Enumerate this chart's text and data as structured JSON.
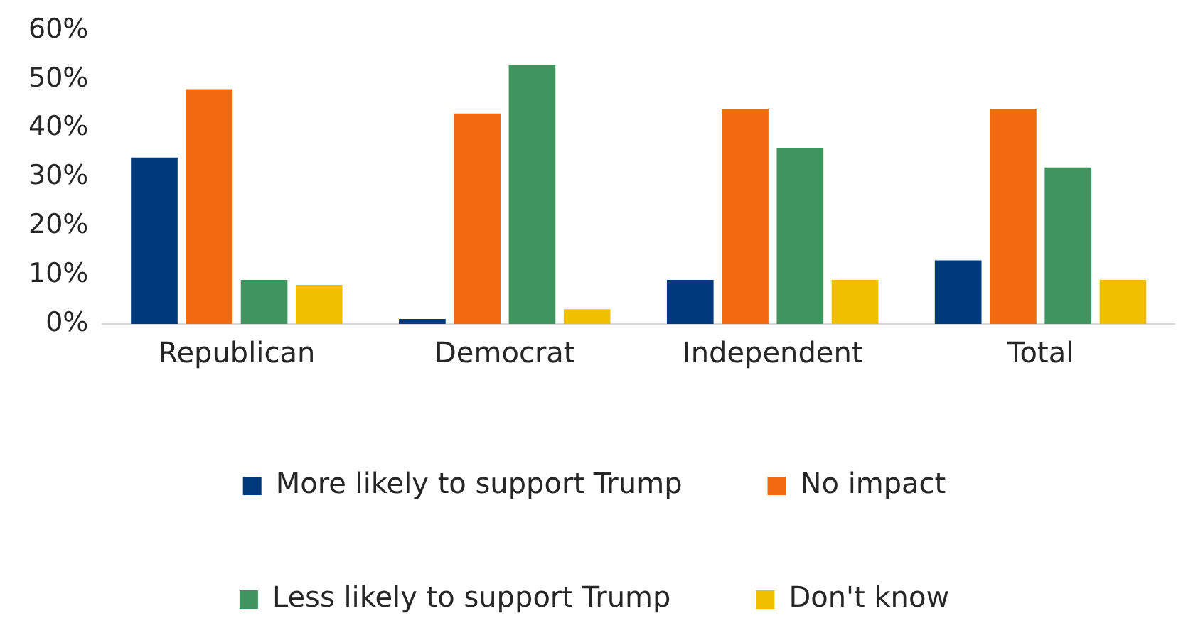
{
  "chart_data": {
    "type": "bar",
    "categories": [
      "Republican",
      "Democrat",
      "Independent",
      "Total"
    ],
    "series": [
      {
        "name": "More likely to support Trump",
        "color": "#003a7d",
        "values": [
          34,
          1,
          9,
          13
        ]
      },
      {
        "name": "No impact",
        "color": "#f26a0f",
        "values": [
          48,
          43,
          44,
          44
        ]
      },
      {
        "name": "Less likely to support Trump",
        "color": "#3f9460",
        "values": [
          9,
          53,
          36,
          32
        ]
      },
      {
        "name": "Don't know",
        "color": "#f0c000",
        "values": [
          8,
          3,
          9,
          9
        ]
      }
    ],
    "ylim": [
      0,
      60
    ],
    "yticks": [
      {
        "value": 0,
        "label": "0%"
      },
      {
        "value": 10,
        "label": "10%"
      },
      {
        "value": 20,
        "label": "20%"
      },
      {
        "value": 30,
        "label": "30%"
      },
      {
        "value": 40,
        "label": "40%"
      },
      {
        "value": 50,
        "label": "50%"
      },
      {
        "value": 60,
        "label": "60%"
      }
    ],
    "grid": false,
    "legend": "bottom"
  }
}
